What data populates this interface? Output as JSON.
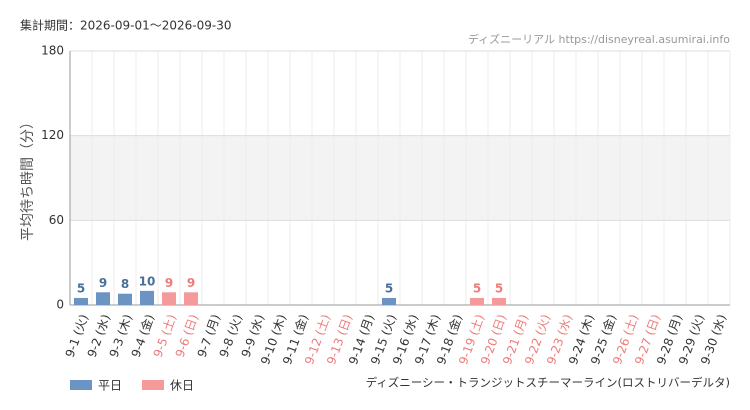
{
  "period": "集計期間：2026-09-01～2026-09-30",
  "source": "ディズニーリアル https://disneyreal.asumirai.info",
  "attraction": "ディズニーシー・トランジットスチーマーライン(ロストリバーデルタ)",
  "chart_data": {
    "type": "bar",
    "y_label": "平均待ち時間（分）",
    "categories": [
      "9-1 (火)",
      "9-2 (水)",
      "9-3 (木)",
      "9-4 (金)",
      "9-5 (土)",
      "9-6 (日)",
      "9-7 (月)",
      "9-8 (火)",
      "9-9 (水)",
      "9-10 (木)",
      "9-11 (金)",
      "9-12 (土)",
      "9-13 (日)",
      "9-14 (月)",
      "9-15 (火)",
      "9-16 (水)",
      "9-17 (木)",
      "9-18 (金)",
      "9-19 (土)",
      "9-20 (日)",
      "9-21 (月)",
      "9-22 (火)",
      "9-23 (水)",
      "9-24 (木)",
      "9-25 (金)",
      "9-26 (土)",
      "9-27 (日)",
      "9-28 (月)",
      "9-29 (火)",
      "9-30 (水)"
    ],
    "category_series": [
      0,
      0,
      0,
      0,
      1,
      1,
      0,
      0,
      0,
      0,
      0,
      1,
      1,
      0,
      0,
      0,
      0,
      0,
      1,
      1,
      1,
      1,
      1,
      0,
      0,
      1,
      1,
      0,
      0,
      0
    ],
    "series": [
      {
        "name": "平日",
        "color": "#6b93c3",
        "label_color": "#4a6f99",
        "values": [
          5,
          9,
          8,
          10,
          null,
          null,
          null,
          null,
          null,
          null,
          null,
          null,
          null,
          null,
          5,
          null,
          null,
          null,
          null,
          null,
          null,
          null,
          null,
          null,
          null,
          null,
          null,
          null,
          null,
          null
        ]
      },
      {
        "name": "休日",
        "color": "#f59a9a",
        "label_color": "#ee7b7b",
        "values": [
          null,
          null,
          null,
          null,
          9,
          9,
          null,
          null,
          null,
          null,
          null,
          null,
          null,
          null,
          null,
          null,
          null,
          null,
          5,
          5,
          null,
          null,
          null,
          null,
          null,
          null,
          null,
          null,
          null,
          null
        ]
      }
    ],
    "ylim": [
      0,
      180
    ],
    "yticks": [
      0,
      60,
      120,
      180
    ],
    "grid": true
  }
}
